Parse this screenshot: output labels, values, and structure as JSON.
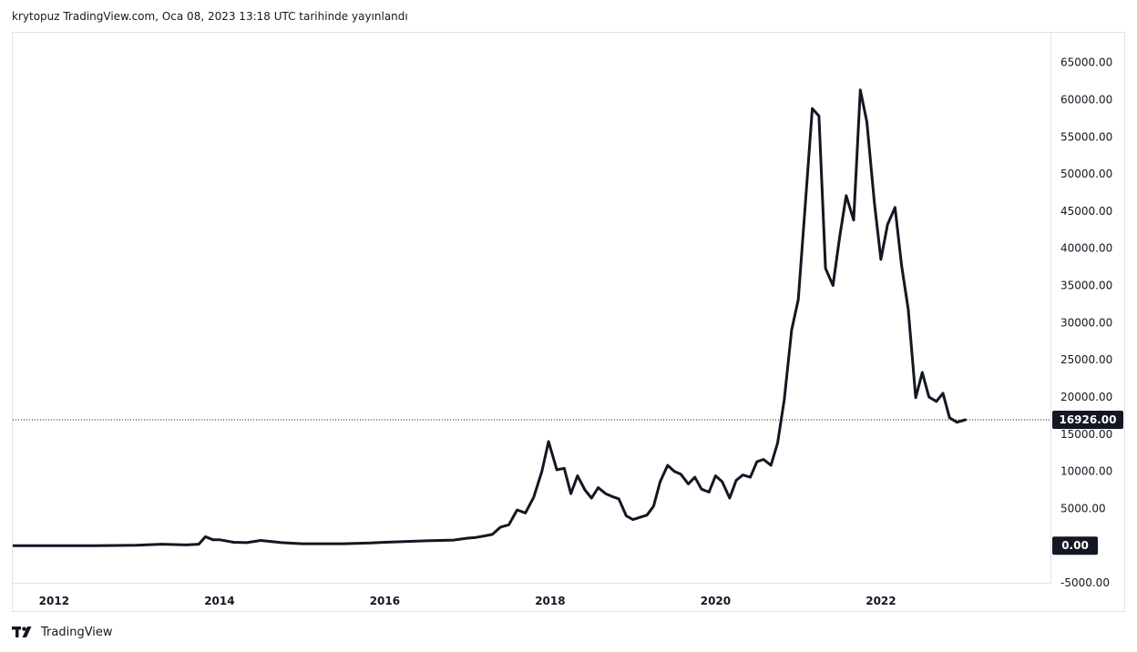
{
  "caption": "krytopuz TradingView.com, Oca 08, 2023 13:18 UTC tarihinde yayınlandı",
  "brand": {
    "name": "TradingView",
    "icon": "tradingview-logo-icon"
  },
  "colors": {
    "line": "#131722",
    "tag_bg": "#131722",
    "tag_text": "#ffffff",
    "border": "#e0e3eb"
  },
  "chart_data": {
    "type": "line",
    "title": "",
    "xlabel": "",
    "ylabel": "",
    "ylim": [
      -5000,
      69000
    ],
    "xlim": [
      2011.5,
      2024.05
    ],
    "grid": false,
    "y_ticks": [
      65000,
      60000,
      55000,
      50000,
      45000,
      40000,
      35000,
      30000,
      25000,
      20000,
      15000,
      10000,
      5000,
      -5000
    ],
    "y_tick_labels": [
      "65000.00",
      "60000.00",
      "55000.00",
      "50000.00",
      "45000.00",
      "40000.00",
      "35000.00",
      "30000.00",
      "25000.00",
      "20000.00",
      "15000.00",
      "10000.00",
      "5000.00",
      "-5000.00"
    ],
    "x_ticks": [
      2012,
      2014,
      2016,
      2018,
      2020,
      2022
    ],
    "x_tick_labels": [
      "2012",
      "2014",
      "2016",
      "2018",
      "2020",
      "2022"
    ],
    "current_value": 16926,
    "current_label": "16926.00",
    "zero_value": 0,
    "zero_label": "0.00",
    "series": [
      {
        "x": [
          2011.5,
          2012.0,
          2012.5,
          2013.0,
          2013.3,
          2013.6,
          2013.75,
          2013.83,
          2013.92,
          2014.0,
          2014.17,
          2014.33,
          2014.5,
          2014.75,
          2015.0,
          2015.5,
          2015.83,
          2016.0,
          2016.5,
          2016.83,
          2017.0,
          2017.1,
          2017.2,
          2017.3,
          2017.4,
          2017.5,
          2017.6,
          2017.7,
          2017.8,
          2017.9,
          2017.98,
          2018.08,
          2018.17,
          2018.25,
          2018.33,
          2018.42,
          2018.5,
          2018.58,
          2018.67,
          2018.75,
          2018.83,
          2018.92,
          2019.0,
          2019.17,
          2019.25,
          2019.33,
          2019.42,
          2019.5,
          2019.58,
          2019.67,
          2019.75,
          2019.83,
          2019.92,
          2020.0,
          2020.08,
          2020.17,
          2020.25,
          2020.33,
          2020.42,
          2020.5,
          2020.58,
          2020.67,
          2020.75,
          2020.83,
          2020.92,
          2021.0,
          2021.08,
          2021.17,
          2021.25,
          2021.33,
          2021.42,
          2021.5,
          2021.58,
          2021.67,
          2021.75,
          2021.83,
          2021.92,
          2022.0,
          2022.08,
          2022.17,
          2022.25,
          2022.33,
          2022.42,
          2022.5,
          2022.58,
          2022.67,
          2022.75,
          2022.83,
          2022.92,
          2023.02
        ],
        "values": [
          0,
          0,
          0,
          50,
          200,
          100,
          200,
          1200,
          800,
          800,
          450,
          400,
          700,
          400,
          250,
          250,
          350,
          450,
          650,
          750,
          1000,
          1100,
          1300,
          1500,
          2500,
          2800,
          4800,
          4400,
          6500,
          10000,
          14000,
          10200,
          10400,
          7000,
          9400,
          7500,
          6400,
          7800,
          7000,
          6600,
          6300,
          4000,
          3500,
          4100,
          5300,
          8600,
          10800,
          10000,
          9600,
          8300,
          9200,
          7600,
          7200,
          9400,
          8600,
          6400,
          8800,
          9500,
          9200,
          11300,
          11600,
          10800,
          13800,
          19600,
          29000,
          33100,
          45200,
          58800,
          57800,
          37300,
          35000,
          41500,
          47100,
          43800,
          61300,
          57000,
          46200,
          38500,
          43200,
          45500,
          37700,
          31800,
          19900,
          23300,
          20000,
          19400,
          20500,
          17200,
          16600,
          16926
        ]
      }
    ]
  }
}
